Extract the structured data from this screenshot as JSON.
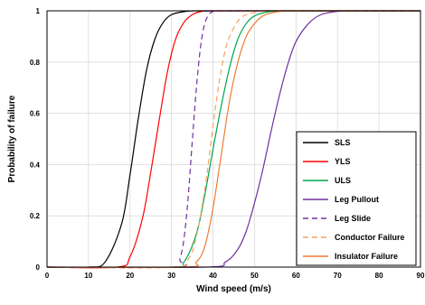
{
  "chart_data": {
    "type": "line",
    "title": "",
    "xlabel": "Wind speed (m/s)",
    "ylabel": "Probability of failure",
    "xlim": [
      0,
      90
    ],
    "ylim": [
      0,
      1
    ],
    "x_ticks": [
      "0",
      "10",
      "20",
      "30",
      "40",
      "50",
      "60",
      "70",
      "80",
      "90"
    ],
    "y_ticks": [
      "0",
      "0.2",
      "0.4",
      "0.6",
      "0.8",
      "1"
    ],
    "grid": true,
    "legend_position": "bottom-right",
    "series": [
      {
        "name": "SLS",
        "color": "#000000",
        "dash": "solid",
        "x": [
          10,
          14,
          18,
          20,
          22,
          24,
          26,
          28,
          30,
          33,
          36,
          40
        ],
        "y": [
          0.0,
          0.02,
          0.17,
          0.36,
          0.58,
          0.77,
          0.89,
          0.955,
          0.985,
          0.997,
          1.0,
          1.0
        ]
      },
      {
        "name": "YLS",
        "color": "#ff0000",
        "dash": "solid",
        "x": [
          17,
          20,
          23,
          25,
          27,
          29,
          31,
          33,
          35,
          37,
          40,
          44
        ],
        "y": [
          0.0,
          0.04,
          0.19,
          0.37,
          0.57,
          0.76,
          0.89,
          0.955,
          0.985,
          0.997,
          1.0,
          1.0
        ]
      },
      {
        "name": "ULS",
        "color": "#00a550",
        "dash": "solid",
        "x": [
          30,
          33,
          36,
          38,
          40,
          42,
          44,
          46,
          48,
          50,
          53,
          57,
          60
        ],
        "y": [
          0.0,
          0.02,
          0.13,
          0.28,
          0.46,
          0.63,
          0.78,
          0.89,
          0.95,
          0.98,
          0.995,
          1.0,
          1.0
        ]
      },
      {
        "name": "Leg Pullout",
        "color": "#7030a0",
        "dash": "solid",
        "x": [
          38,
          43,
          46,
          48,
          50,
          52,
          54,
          56,
          58,
          60,
          63,
          66,
          70,
          73
        ],
        "y": [
          0.0,
          0.02,
          0.07,
          0.14,
          0.25,
          0.38,
          0.53,
          0.67,
          0.79,
          0.88,
          0.95,
          0.985,
          0.998,
          1.0
        ]
      },
      {
        "name": "Leg Slide",
        "color": "#7030a0",
        "dash": "dashed",
        "x": [
          31,
          32,
          33,
          34,
          35,
          36,
          37,
          38,
          39,
          40,
          42
        ],
        "y": [
          0.0,
          0.03,
          0.11,
          0.27,
          0.49,
          0.7,
          0.86,
          0.95,
          0.985,
          0.997,
          1.0
        ]
      },
      {
        "name": "Conductor Failure",
        "color": "#f4a460",
        "dash": "dashed",
        "x": [
          30,
          34,
          36,
          38,
          39,
          40,
          41,
          42,
          43,
          44,
          46,
          48,
          52,
          58
        ],
        "y": [
          0.0,
          0.03,
          0.12,
          0.3,
          0.42,
          0.55,
          0.67,
          0.77,
          0.85,
          0.9,
          0.96,
          0.985,
          0.998,
          1.0
        ]
      },
      {
        "name": "Insulator Failure",
        "color": "#ed7d31",
        "dash": "solid",
        "x": [
          33,
          36,
          38,
          40,
          42,
          44,
          46,
          48,
          50,
          52,
          55,
          58,
          62
        ],
        "y": [
          0.0,
          0.02,
          0.08,
          0.23,
          0.44,
          0.65,
          0.8,
          0.9,
          0.95,
          0.98,
          0.995,
          1.0,
          1.0
        ]
      }
    ]
  }
}
